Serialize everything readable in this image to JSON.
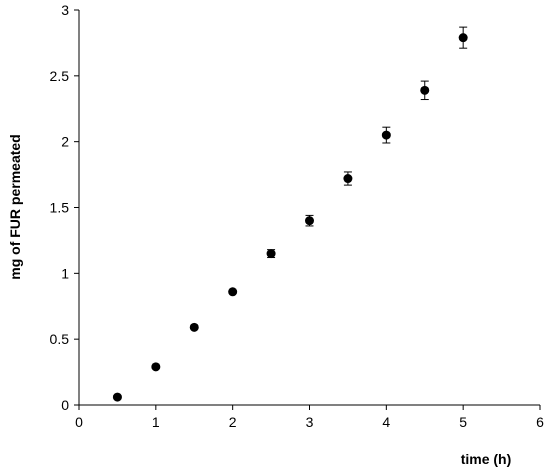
{
  "chart_data": {
    "type": "scatter",
    "title": "",
    "xlabel": "time (h)",
    "ylabel": "mg of FUR permeated",
    "xlim": [
      0,
      6
    ],
    "ylim": [
      0,
      3
    ],
    "xticks": [
      0,
      1,
      2,
      3,
      4,
      5,
      6
    ],
    "yticks": [
      0,
      0.5,
      1,
      1.5,
      2,
      2.5,
      3
    ],
    "xtick_labels": [
      "0",
      "1",
      "2",
      "3",
      "4",
      "5",
      "6"
    ],
    "ytick_labels": [
      "0",
      "0.5",
      "1",
      "1.5",
      "2",
      "2.5",
      "3"
    ],
    "grid": false,
    "series": [
      {
        "x": [
          0.5,
          1.0,
          1.5,
          2.0,
          2.5,
          3.0,
          3.5,
          4.0,
          4.5,
          5.0
        ],
        "y": [
          0.06,
          0.29,
          0.59,
          0.86,
          1.15,
          1.4,
          1.72,
          2.05,
          2.39,
          2.79
        ],
        "error": [
          0.01,
          0.01,
          0.01,
          0.01,
          0.03,
          0.04,
          0.05,
          0.06,
          0.07,
          0.08
        ],
        "marker_color": "#000000"
      }
    ]
  }
}
